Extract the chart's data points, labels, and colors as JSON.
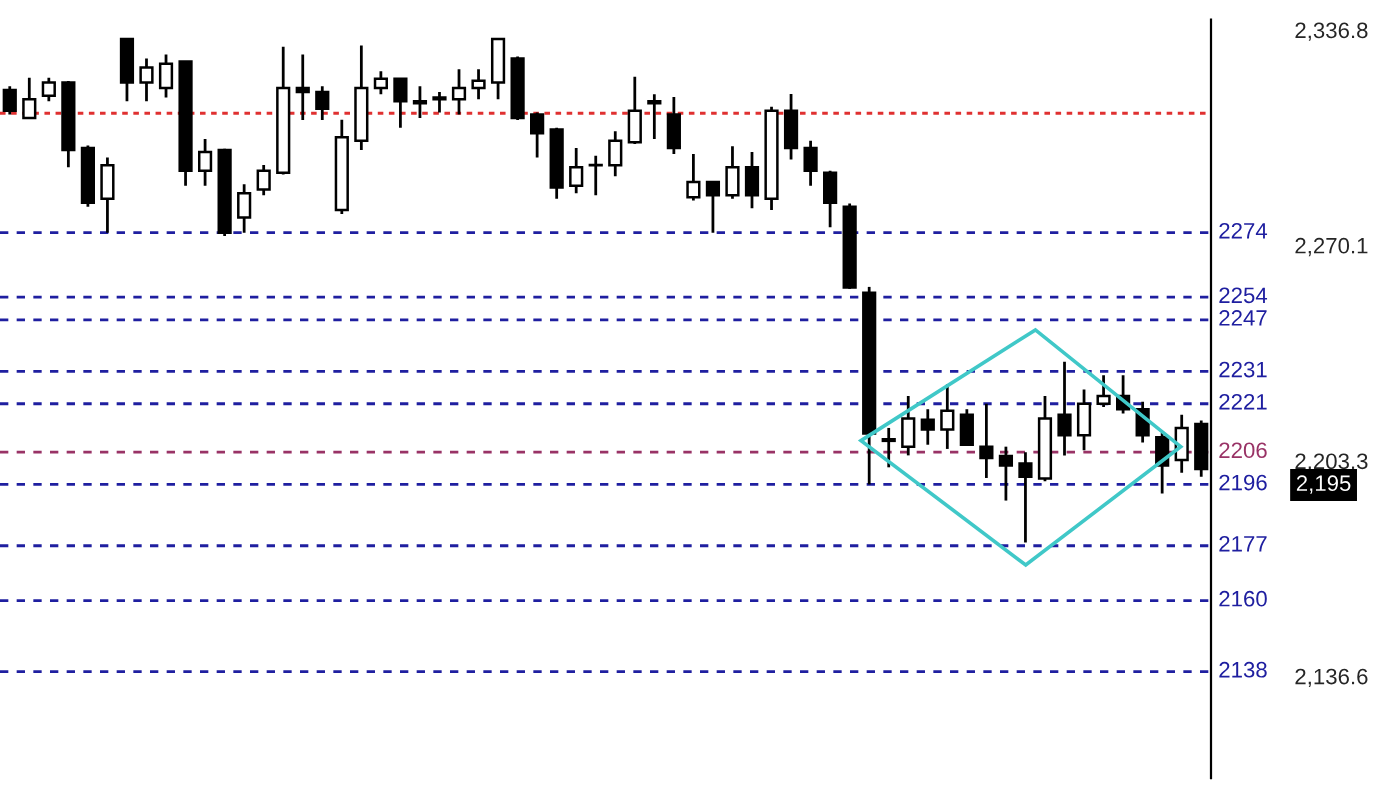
{
  "chart_data": {
    "type": "candlestick",
    "categories": [
      null,
      null,
      null,
      null,
      null,
      null,
      null,
      null,
      null,
      null,
      null,
      null,
      null,
      null,
      null,
      null,
      null,
      null,
      null,
      null,
      null,
      null,
      null,
      null,
      null,
      null,
      null,
      null,
      null,
      null,
      null,
      null,
      null,
      null,
      null,
      null,
      null,
      null,
      null,
      null,
      null,
      null,
      null,
      null,
      null,
      null,
      null,
      null,
      null,
      null,
      null,
      null,
      null,
      null,
      null,
      null,
      null,
      null,
      null,
      null,
      null,
      null
    ],
    "ohlc": [
      [
        2318.2,
        2319.4,
        2310.6,
        2311.8
      ],
      [
        2309.5,
        2322,
        2309.5,
        2315.3
      ],
      [
        2316.4,
        2322,
        2314.7,
        2320.5
      ],
      [
        2320.5,
        2321,
        2294.3,
        2299.6
      ],
      [
        2300.2,
        2301,
        2282,
        2283.3
      ],
      [
        2284.5,
        2297.3,
        2274,
        2294.9
      ],
      [
        2334,
        2334,
        2314.7,
        2320.5
      ],
      [
        2320.5,
        2328,
        2314.7,
        2325.2
      ],
      [
        2318.8,
        2329.2,
        2315.9,
        2326.3
      ],
      [
        2327,
        2327,
        2288.5,
        2293.2
      ],
      [
        2293.2,
        2303,
        2288.5,
        2299
      ],
      [
        2299.6,
        2300,
        2273,
        2274
      ],
      [
        2278.7,
        2289,
        2274,
        2286.2
      ],
      [
        2287.4,
        2295,
        2285.6,
        2293.2
      ],
      [
        2292.6,
        2331.6,
        2292,
        2318.8
      ],
      [
        2318.8,
        2329.2,
        2308.9,
        2317.6
      ],
      [
        2317.6,
        2319.4,
        2308.9,
        2312.4
      ],
      [
        2281,
        2309,
        2279.8,
        2303.6
      ],
      [
        2302.5,
        2332,
        2299.6,
        2318.8
      ],
      [
        2318.8,
        2324,
        2316.9,
        2321.7
      ],
      [
        2321.7,
        2321.7,
        2306.5,
        2314.7
      ],
      [
        2314.7,
        2319.4,
        2309.5,
        2314.1
      ],
      [
        2315.3,
        2317.6,
        2311.2,
        2315.9
      ],
      [
        2315.3,
        2324.6,
        2310.6,
        2318.8
      ],
      [
        2318.8,
        2324.6,
        2315.3,
        2321.1
      ],
      [
        2320.5,
        2334,
        2315.3,
        2334
      ],
      [
        2328,
        2328.6,
        2308.9,
        2309.5
      ],
      [
        2310.6,
        2311.2,
        2297.3,
        2304.8
      ],
      [
        2306,
        2306.5,
        2284.5,
        2288
      ],
      [
        2288.5,
        2300.2,
        2286.2,
        2294.3
      ],
      [
        2295,
        2297.8,
        2285.6,
        2294.9
      ],
      [
        2294.9,
        2305.4,
        2291.5,
        2302.5
      ],
      [
        2302,
        2322.3,
        2301.5,
        2311.8
      ],
      [
        2314.7,
        2316.9,
        2303,
        2314.1
      ],
      [
        2310.6,
        2316,
        2298.4,
        2300.2
      ],
      [
        2285,
        2298.4,
        2284,
        2289.7
      ],
      [
        2289.7,
        2289.7,
        2274,
        2285.6
      ],
      [
        2285.6,
        2300.8,
        2284.5,
        2294.3
      ],
      [
        2294.3,
        2299,
        2281.6,
        2285.6
      ],
      [
        2284.5,
        2313,
        2281,
        2311.8
      ],
      [
        2311.8,
        2317,
        2296.7,
        2300.2
      ],
      [
        2300.2,
        2302.5,
        2288.5,
        2293.2
      ],
      [
        2292.6,
        2293.2,
        2275.7,
        2283.3
      ],
      [
        2282,
        2283,
        2256.6,
        2257
      ],
      [
        2255.4,
        2257.2,
        2196,
        2211.8
      ],
      [
        2210,
        2213.5,
        2201.3,
        2209.5
      ],
      [
        2207.7,
        2223.4,
        2205,
        2216.4
      ],
      [
        2216,
        2219.3,
        2208.3,
        2213
      ],
      [
        2213,
        2227,
        2207,
        2218.8
      ],
      [
        2217.6,
        2219.3,
        2208.3,
        2208.3
      ],
      [
        2207.7,
        2221,
        2198,
        2204.2
      ],
      [
        2204.8,
        2207.7,
        2191,
        2201.9
      ],
      [
        2202.5,
        2206,
        2178,
        2198.4
      ],
      [
        2197.8,
        2223.4,
        2197,
        2216.4
      ],
      [
        2217.6,
        2234,
        2205,
        2211.2
      ],
      [
        2211.2,
        2225.4,
        2206.6,
        2221
      ],
      [
        2221,
        2229.8,
        2220,
        2223.4
      ],
      [
        2223.4,
        2229.8,
        2218,
        2219.3
      ],
      [
        2219.3,
        2221.6,
        2209,
        2211.2
      ],
      [
        2210.6,
        2212,
        2193.2,
        2201.9
      ],
      [
        2203.6,
        2217.6,
        2199.6,
        2213.5
      ],
      [
        2214.7,
        2215.8,
        2198.4,
        2200.8
      ]
    ],
    "ylim": [
      2105,
      2340
    ],
    "yticks": [
      {
        "value": 2136.6,
        "label": "2,136.6"
      },
      {
        "value": 2203.3,
        "label": "2,203.3"
      },
      {
        "value": 2270.1,
        "label": "2,270.1"
      },
      {
        "value": 2336.8,
        "label": "2,336.8"
      }
    ],
    "ref_lines": [
      {
        "axis": "y",
        "value": 2311,
        "label": null,
        "color": "#e03030",
        "line_style": "dotted"
      },
      {
        "axis": "y",
        "value": 2274,
        "label": "2274",
        "color": "#1f1fa0",
        "line_style": "dashed"
      },
      {
        "axis": "y",
        "value": 2254,
        "label": "2254",
        "color": "#1f1fa0",
        "line_style": "dashed"
      },
      {
        "axis": "y",
        "value": 2247,
        "label": "2247",
        "color": "#1f1fa0",
        "line_style": "dashed"
      },
      {
        "axis": "y",
        "value": 2231,
        "label": "2231",
        "color": "#1f1fa0",
        "line_style": "dashed"
      },
      {
        "axis": "y",
        "value": 2221,
        "label": "2221",
        "color": "#1f1fa0",
        "line_style": "dashed"
      },
      {
        "axis": "y",
        "value": 2206,
        "label": "2206",
        "color": "#993366",
        "line_style": "dashed"
      },
      {
        "axis": "y",
        "value": 2196,
        "label": "2196",
        "color": "#1f1fa0",
        "line_style": "dashed"
      },
      {
        "axis": "y",
        "value": 2177,
        "label": "2177",
        "color": "#1f1fa0",
        "line_style": "dashed"
      },
      {
        "axis": "y",
        "value": 2160,
        "label": "2160",
        "color": "#1f1fa0",
        "line_style": "dashed"
      },
      {
        "axis": "y",
        "value": 2138,
        "label": "2138",
        "color": "#1f1fa0",
        "line_style": "dashed"
      }
    ],
    "annotations": [
      "2,195"
    ],
    "grid": false
  }
}
